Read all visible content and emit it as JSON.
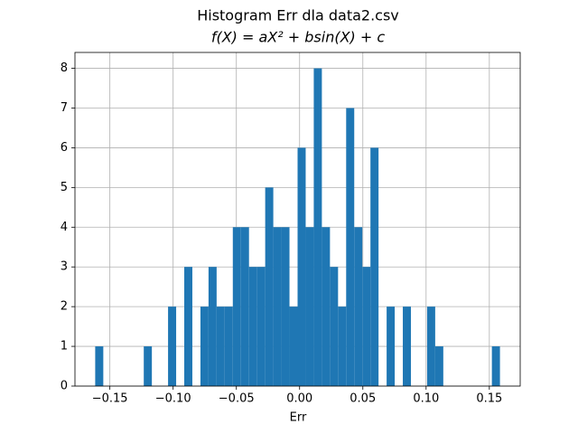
{
  "chart_data": {
    "type": "histogram",
    "title": "Histogram Err dla data2.csv",
    "subtitle": "f(X) = aX² + bsin(X) + c",
    "x_label": "Err",
    "color": "#1f77b4",
    "grid": true,
    "bins": [
      -0.1616,
      -0.1552,
      -0.1488,
      -0.1424,
      -0.136,
      -0.1296,
      -0.1232,
      -0.1168,
      -0.1104,
      -0.104,
      -0.0976,
      -0.0912,
      -0.0848,
      -0.0784,
      -0.072,
      -0.0656,
      -0.0592,
      -0.0528,
      -0.0464,
      -0.04,
      -0.0336,
      -0.0272,
      -0.0208,
      -0.0144,
      -0.008,
      -0.0016,
      0.0048,
      0.0112,
      0.0176,
      0.024,
      0.0304,
      0.0368,
      0.0432,
      0.0496,
      0.056,
      0.0624,
      0.0688,
      0.0752,
      0.0816,
      0.088,
      0.0944,
      0.1008,
      0.1072,
      0.1136,
      0.12,
      0.1264,
      0.1328,
      0.1392,
      0.1456,
      0.152,
      0.1584
    ],
    "values": [
      1,
      0,
      0,
      0,
      0,
      0,
      1,
      0,
      0,
      2,
      0,
      3,
      0,
      2,
      3,
      2,
      2,
      4,
      4,
      3,
      3,
      5,
      4,
      4,
      2,
      6,
      4,
      8,
      4,
      3,
      2,
      7,
      4,
      3,
      6,
      0,
      2,
      0,
      2,
      0,
      0,
      2,
      1,
      0,
      0,
      0,
      0,
      0,
      0,
      1
    ],
    "xlim": [
      -0.1776,
      0.1744
    ],
    "ylim": [
      0,
      8.4
    ],
    "xticks": [
      {
        "value": -0.15,
        "label": "−0.15"
      },
      {
        "value": -0.1,
        "label": "−0.10"
      },
      {
        "value": -0.05,
        "label": "−0.05"
      },
      {
        "value": 0,
        "label": "0.00"
      },
      {
        "value": 0.05,
        "label": "0.05"
      },
      {
        "value": 0.1,
        "label": "0.10"
      },
      {
        "value": 0.15,
        "label": "0.15"
      }
    ],
    "yticks": [
      0,
      1,
      2,
      3,
      4,
      5,
      6,
      7,
      8
    ]
  }
}
